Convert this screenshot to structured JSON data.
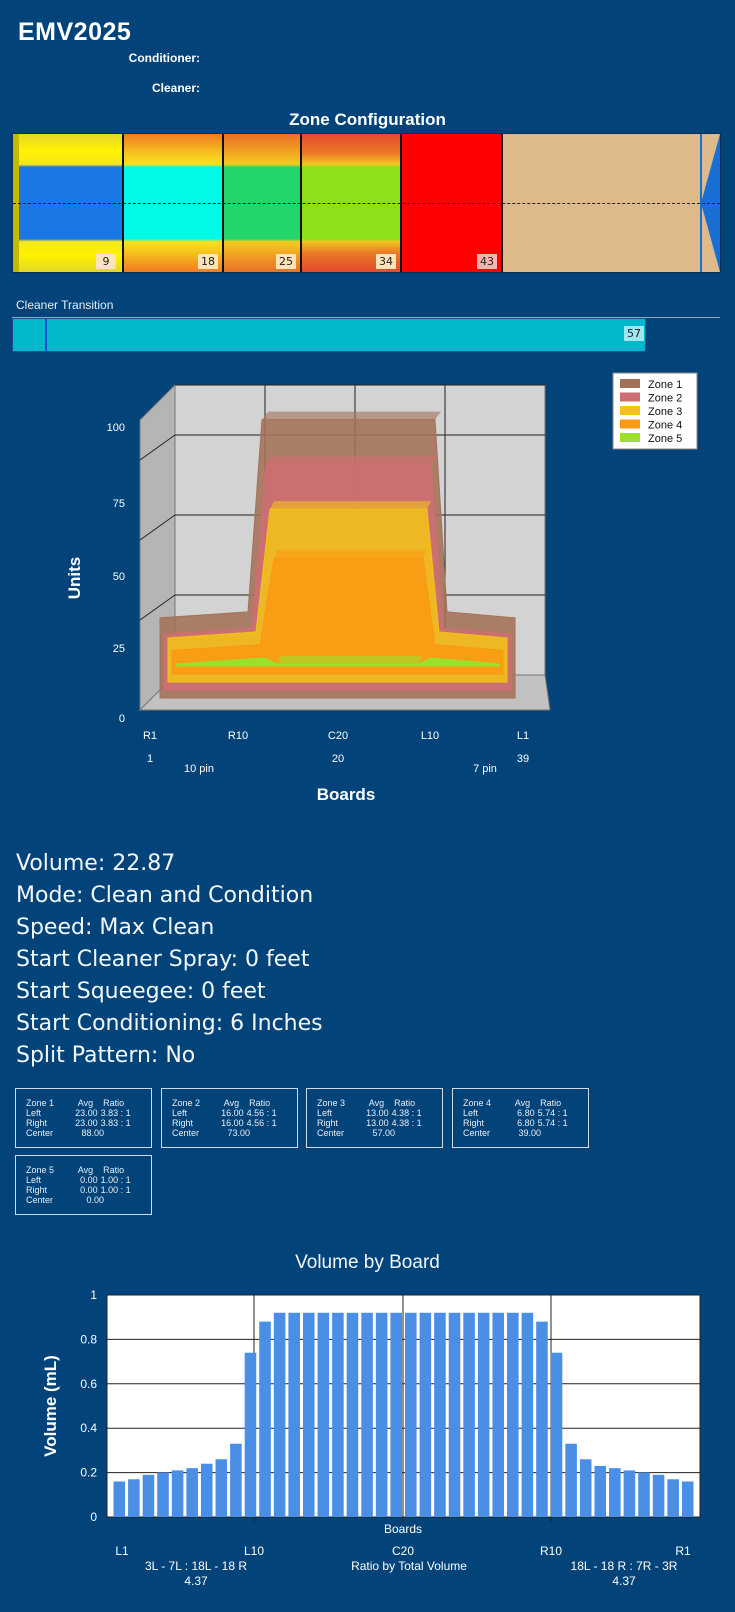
{
  "app": {
    "title": "EMV2025",
    "conditioner_label": "Conditioner:",
    "cleaner_label": "Cleaner:"
  },
  "zone_config": {
    "title": "Zone Configuration",
    "markers": [
      "9",
      "18",
      "25",
      "34",
      "43"
    ]
  },
  "cleaner_transition": {
    "label": "Cleaner Transition",
    "value": "57",
    "fill_fraction": 0.895
  },
  "chart3d": {
    "ylabel": "Units",
    "xlabel": "Boards",
    "yticks": [
      "100",
      "75",
      "50",
      "25",
      "0"
    ],
    "xticks_top": [
      "R1",
      "R10",
      "C20",
      "L10",
      "L1"
    ],
    "xticks_bottom": [
      "1",
      "20",
      "39"
    ],
    "pin_labels": [
      "10 pin",
      "7 pin"
    ],
    "legend": [
      "Zone 1",
      "Zone 2",
      "Zone 3",
      "Zone 4",
      "Zone 5"
    ],
    "colors": [
      "#a47158",
      "#cf6e72",
      "#f2c21a",
      "#fa9a12",
      "#9be02a"
    ]
  },
  "chart_data": [
    {
      "type": "area",
      "ylabel": "Units",
      "xlabel": "Boards",
      "ylim": [
        0,
        100
      ],
      "legend": "top-right",
      "series": [
        {
          "name": "Zone 1",
          "edge": 23,
          "center": 88
        },
        {
          "name": "Zone 2",
          "edge": 16,
          "center": 73
        },
        {
          "name": "Zone 3",
          "edge": 13,
          "center": 57
        },
        {
          "name": "Zone 4",
          "edge": 6.8,
          "center": 39
        },
        {
          "name": "Zone 5",
          "edge": 0,
          "center": 0
        }
      ]
    },
    {
      "type": "bar",
      "title": "Volume by Board",
      "xlabel": "Boards",
      "ylabel": "Volume (mL)",
      "ylim": [
        0,
        1
      ],
      "yticks": [
        "0",
        "0.2",
        "0.4",
        "0.6",
        "0.8",
        "1"
      ],
      "xticks": [
        "L1",
        "L10",
        "C20",
        "R10",
        "R1"
      ],
      "values": [
        0.16,
        0.17,
        0.19,
        0.2,
        0.21,
        0.22,
        0.24,
        0.26,
        0.33,
        0.74,
        0.88,
        0.92,
        0.92,
        0.92,
        0.92,
        0.92,
        0.92,
        0.92,
        0.92,
        0.92,
        0.92,
        0.92,
        0.92,
        0.92,
        0.92,
        0.92,
        0.92,
        0.92,
        0.92,
        0.88,
        0.74,
        0.33,
        0.26,
        0.23,
        0.22,
        0.21,
        0.2,
        0.19,
        0.17,
        0.16
      ],
      "annotations": {
        "left_ratio": "3L - 7L : 18L - 18 R",
        "left_value": "4.37",
        "center": "Ratio by Total Volume",
        "right_ratio": "18L - 18 R : 7R - 3R",
        "right_value": "4.37"
      }
    }
  ],
  "info": {
    "volume": "Volume: 22.87",
    "mode": "Mode: Clean and Condition",
    "speed": "Speed: Max Clean",
    "cleaner_spray": "Start Cleaner Spray: 0 feet",
    "squeegee": "Start Squeegee: 0 feet",
    "conditioning": "Start Conditioning: 6 Inches",
    "split": "Split Pattern: No"
  },
  "zones": [
    {
      "name": "Zone 1",
      "avg": "Avg",
      "ratio": "Ratio",
      "left": "23.00",
      "left_ratio": "3.83 : 1",
      "right": "23.00",
      "right_ratio": "3.83 : 1",
      "center": "88.00"
    },
    {
      "name": "Zone 2",
      "avg": "Avg",
      "ratio": "Ratio",
      "left": "16.00",
      "left_ratio": "4.56 : 1",
      "right": "16.00",
      "right_ratio": "4.56 : 1",
      "center": "73.00"
    },
    {
      "name": "Zone 3",
      "avg": "Avg",
      "ratio": "Ratio",
      "left": "13.00",
      "left_ratio": "4.38 : 1",
      "right": "13.00",
      "right_ratio": "4.38 : 1",
      "center": "57.00"
    },
    {
      "name": "Zone 4",
      "avg": "Avg",
      "ratio": "Ratio",
      "left": "6.80",
      "left_ratio": "5.74 : 1",
      "right": "6.80",
      "right_ratio": "5.74 : 1",
      "center": "39.00"
    },
    {
      "name": "Zone 5",
      "avg": "Avg",
      "ratio": "Ratio",
      "left": "0.00",
      "left_ratio": "1.00 : 1",
      "right": "0.00",
      "right_ratio": "1.00 : 1",
      "center": "0.00"
    }
  ],
  "row_labels": {
    "left": "Left",
    "right": "Right",
    "center": "Center"
  }
}
